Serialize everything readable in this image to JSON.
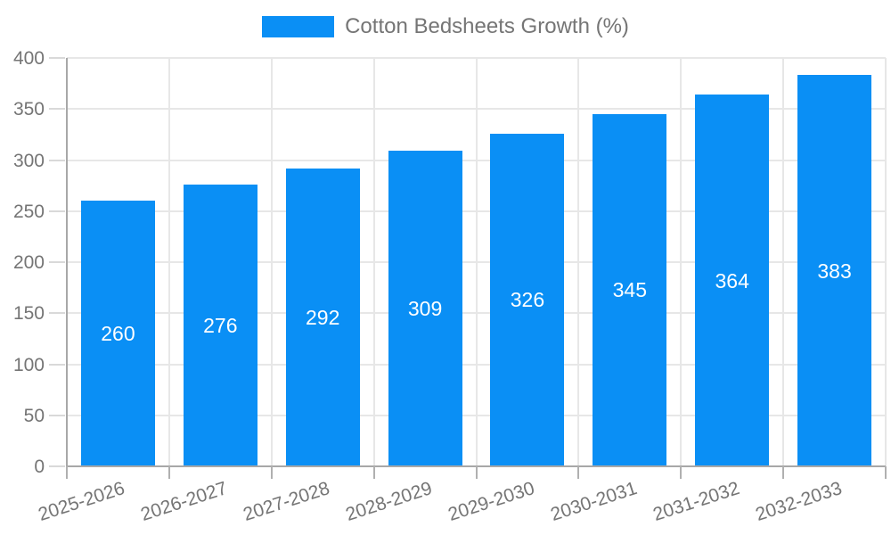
{
  "legend": {
    "label": "Cotton Bedsheets Growth (%)"
  },
  "colors": {
    "bar": "#0a8ff5",
    "grid": "#e7e7e7",
    "axis": "#a8a8a8",
    "tick_text": "#757575",
    "value_text": "#ffffff",
    "background": "#ffffff"
  },
  "chart_data": {
    "type": "bar",
    "title": "",
    "legend": [
      "Cotton Bedsheets Growth (%)"
    ],
    "categories": [
      "2025-2026",
      "2026-2027",
      "2027-2028",
      "2028-2029",
      "2029-2030",
      "2030-2031",
      "2031-2032",
      "2032-2033"
    ],
    "values": [
      260,
      276,
      292,
      309,
      326,
      345,
      364,
      383
    ],
    "xlabel": "",
    "ylabel": "",
    "ylim": [
      0,
      400
    ],
    "yticks": [
      0,
      50,
      100,
      150,
      200,
      250,
      300,
      350,
      400
    ],
    "grid": true,
    "legend_position": "top-center",
    "value_label_position": "inside-center",
    "x_label_rotation_deg": -18
  }
}
